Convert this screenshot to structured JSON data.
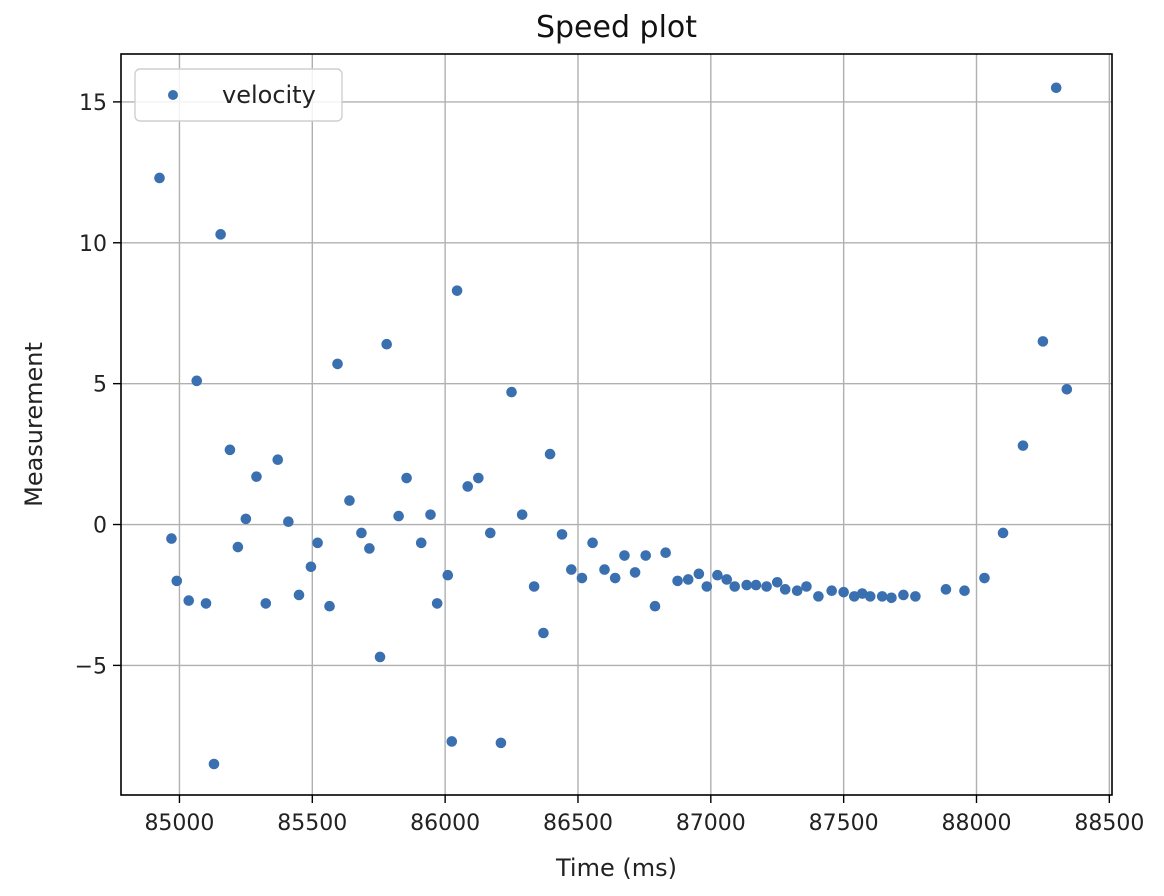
{
  "chart_data": {
    "type": "scatter",
    "title": "Speed plot",
    "xlabel": "Time (ms)",
    "ylabel": "Measurement",
    "xlim": [
      84780,
      88510
    ],
    "ylim": [
      -9.6,
      16.7
    ],
    "xticks": [
      85000,
      85500,
      86000,
      86500,
      87000,
      87500,
      88000,
      88500
    ],
    "yticks": [
      -5,
      0,
      5,
      10,
      15
    ],
    "xtick_labels": [
      "85000",
      "85500",
      "86000",
      "86500",
      "87000",
      "87500",
      "88000",
      "88500"
    ],
    "ytick_labels": [
      "−5",
      "0",
      "5",
      "10",
      "15"
    ],
    "grid": true,
    "legend_position": "upper-left",
    "series": [
      {
        "name": "velocity",
        "color": "#3a6fb0",
        "points": [
          [
            84925,
            12.3
          ],
          [
            84970,
            -0.5
          ],
          [
            84990,
            -2.0
          ],
          [
            85035,
            -2.7
          ],
          [
            85065,
            5.1
          ],
          [
            85100,
            -2.8
          ],
          [
            85130,
            -8.5
          ],
          [
            85155,
            10.3
          ],
          [
            85190,
            2.65
          ],
          [
            85220,
            -0.8
          ],
          [
            85250,
            0.2
          ],
          [
            85290,
            1.7
          ],
          [
            85325,
            -2.8
          ],
          [
            85370,
            2.3
          ],
          [
            85410,
            0.1
          ],
          [
            85450,
            -2.5
          ],
          [
            85495,
            -1.5
          ],
          [
            85520,
            -0.65
          ],
          [
            85565,
            -2.9
          ],
          [
            85595,
            5.7
          ],
          [
            85640,
            0.85
          ],
          [
            85685,
            -0.3
          ],
          [
            85715,
            -0.85
          ],
          [
            85755,
            -4.7
          ],
          [
            85780,
            6.4
          ],
          [
            85825,
            0.3
          ],
          [
            85855,
            1.65
          ],
          [
            85910,
            -0.65
          ],
          [
            85945,
            0.35
          ],
          [
            85970,
            -2.8
          ],
          [
            86010,
            -1.8
          ],
          [
            86025,
            -7.7
          ],
          [
            86045,
            8.3
          ],
          [
            86085,
            1.35
          ],
          [
            86125,
            1.65
          ],
          [
            86170,
            -0.3
          ],
          [
            86210,
            -7.75
          ],
          [
            86250,
            4.7
          ],
          [
            86290,
            0.35
          ],
          [
            86335,
            -2.2
          ],
          [
            86370,
            -3.85
          ],
          [
            86395,
            2.5
          ],
          [
            86440,
            -0.35
          ],
          [
            86475,
            -1.6
          ],
          [
            86515,
            -1.9
          ],
          [
            86555,
            -0.65
          ],
          [
            86600,
            -1.6
          ],
          [
            86640,
            -1.9
          ],
          [
            86675,
            -1.1
          ],
          [
            86715,
            -1.7
          ],
          [
            86755,
            -1.1
          ],
          [
            86790,
            -2.9
          ],
          [
            86830,
            -1.0
          ],
          [
            86875,
            -2.0
          ],
          [
            86915,
            -1.95
          ],
          [
            86955,
            -1.75
          ],
          [
            86985,
            -2.2
          ],
          [
            87025,
            -1.8
          ],
          [
            87060,
            -1.95
          ],
          [
            87090,
            -2.2
          ],
          [
            87135,
            -2.15
          ],
          [
            87170,
            -2.15
          ],
          [
            87210,
            -2.2
          ],
          [
            87250,
            -2.05
          ],
          [
            87280,
            -2.3
          ],
          [
            87325,
            -2.35
          ],
          [
            87360,
            -2.2
          ],
          [
            87405,
            -2.55
          ],
          [
            87455,
            -2.35
          ],
          [
            87500,
            -2.4
          ],
          [
            87540,
            -2.55
          ],
          [
            87570,
            -2.45
          ],
          [
            87600,
            -2.55
          ],
          [
            87645,
            -2.55
          ],
          [
            87680,
            -2.6
          ],
          [
            87725,
            -2.5
          ],
          [
            87770,
            -2.55
          ],
          [
            87885,
            -2.3
          ],
          [
            87955,
            -2.35
          ],
          [
            88030,
            -1.9
          ],
          [
            88100,
            -0.3
          ],
          [
            88175,
            2.8
          ],
          [
            88250,
            6.5
          ],
          [
            88300,
            15.5
          ],
          [
            88340,
            4.8
          ]
        ]
      }
    ]
  }
}
